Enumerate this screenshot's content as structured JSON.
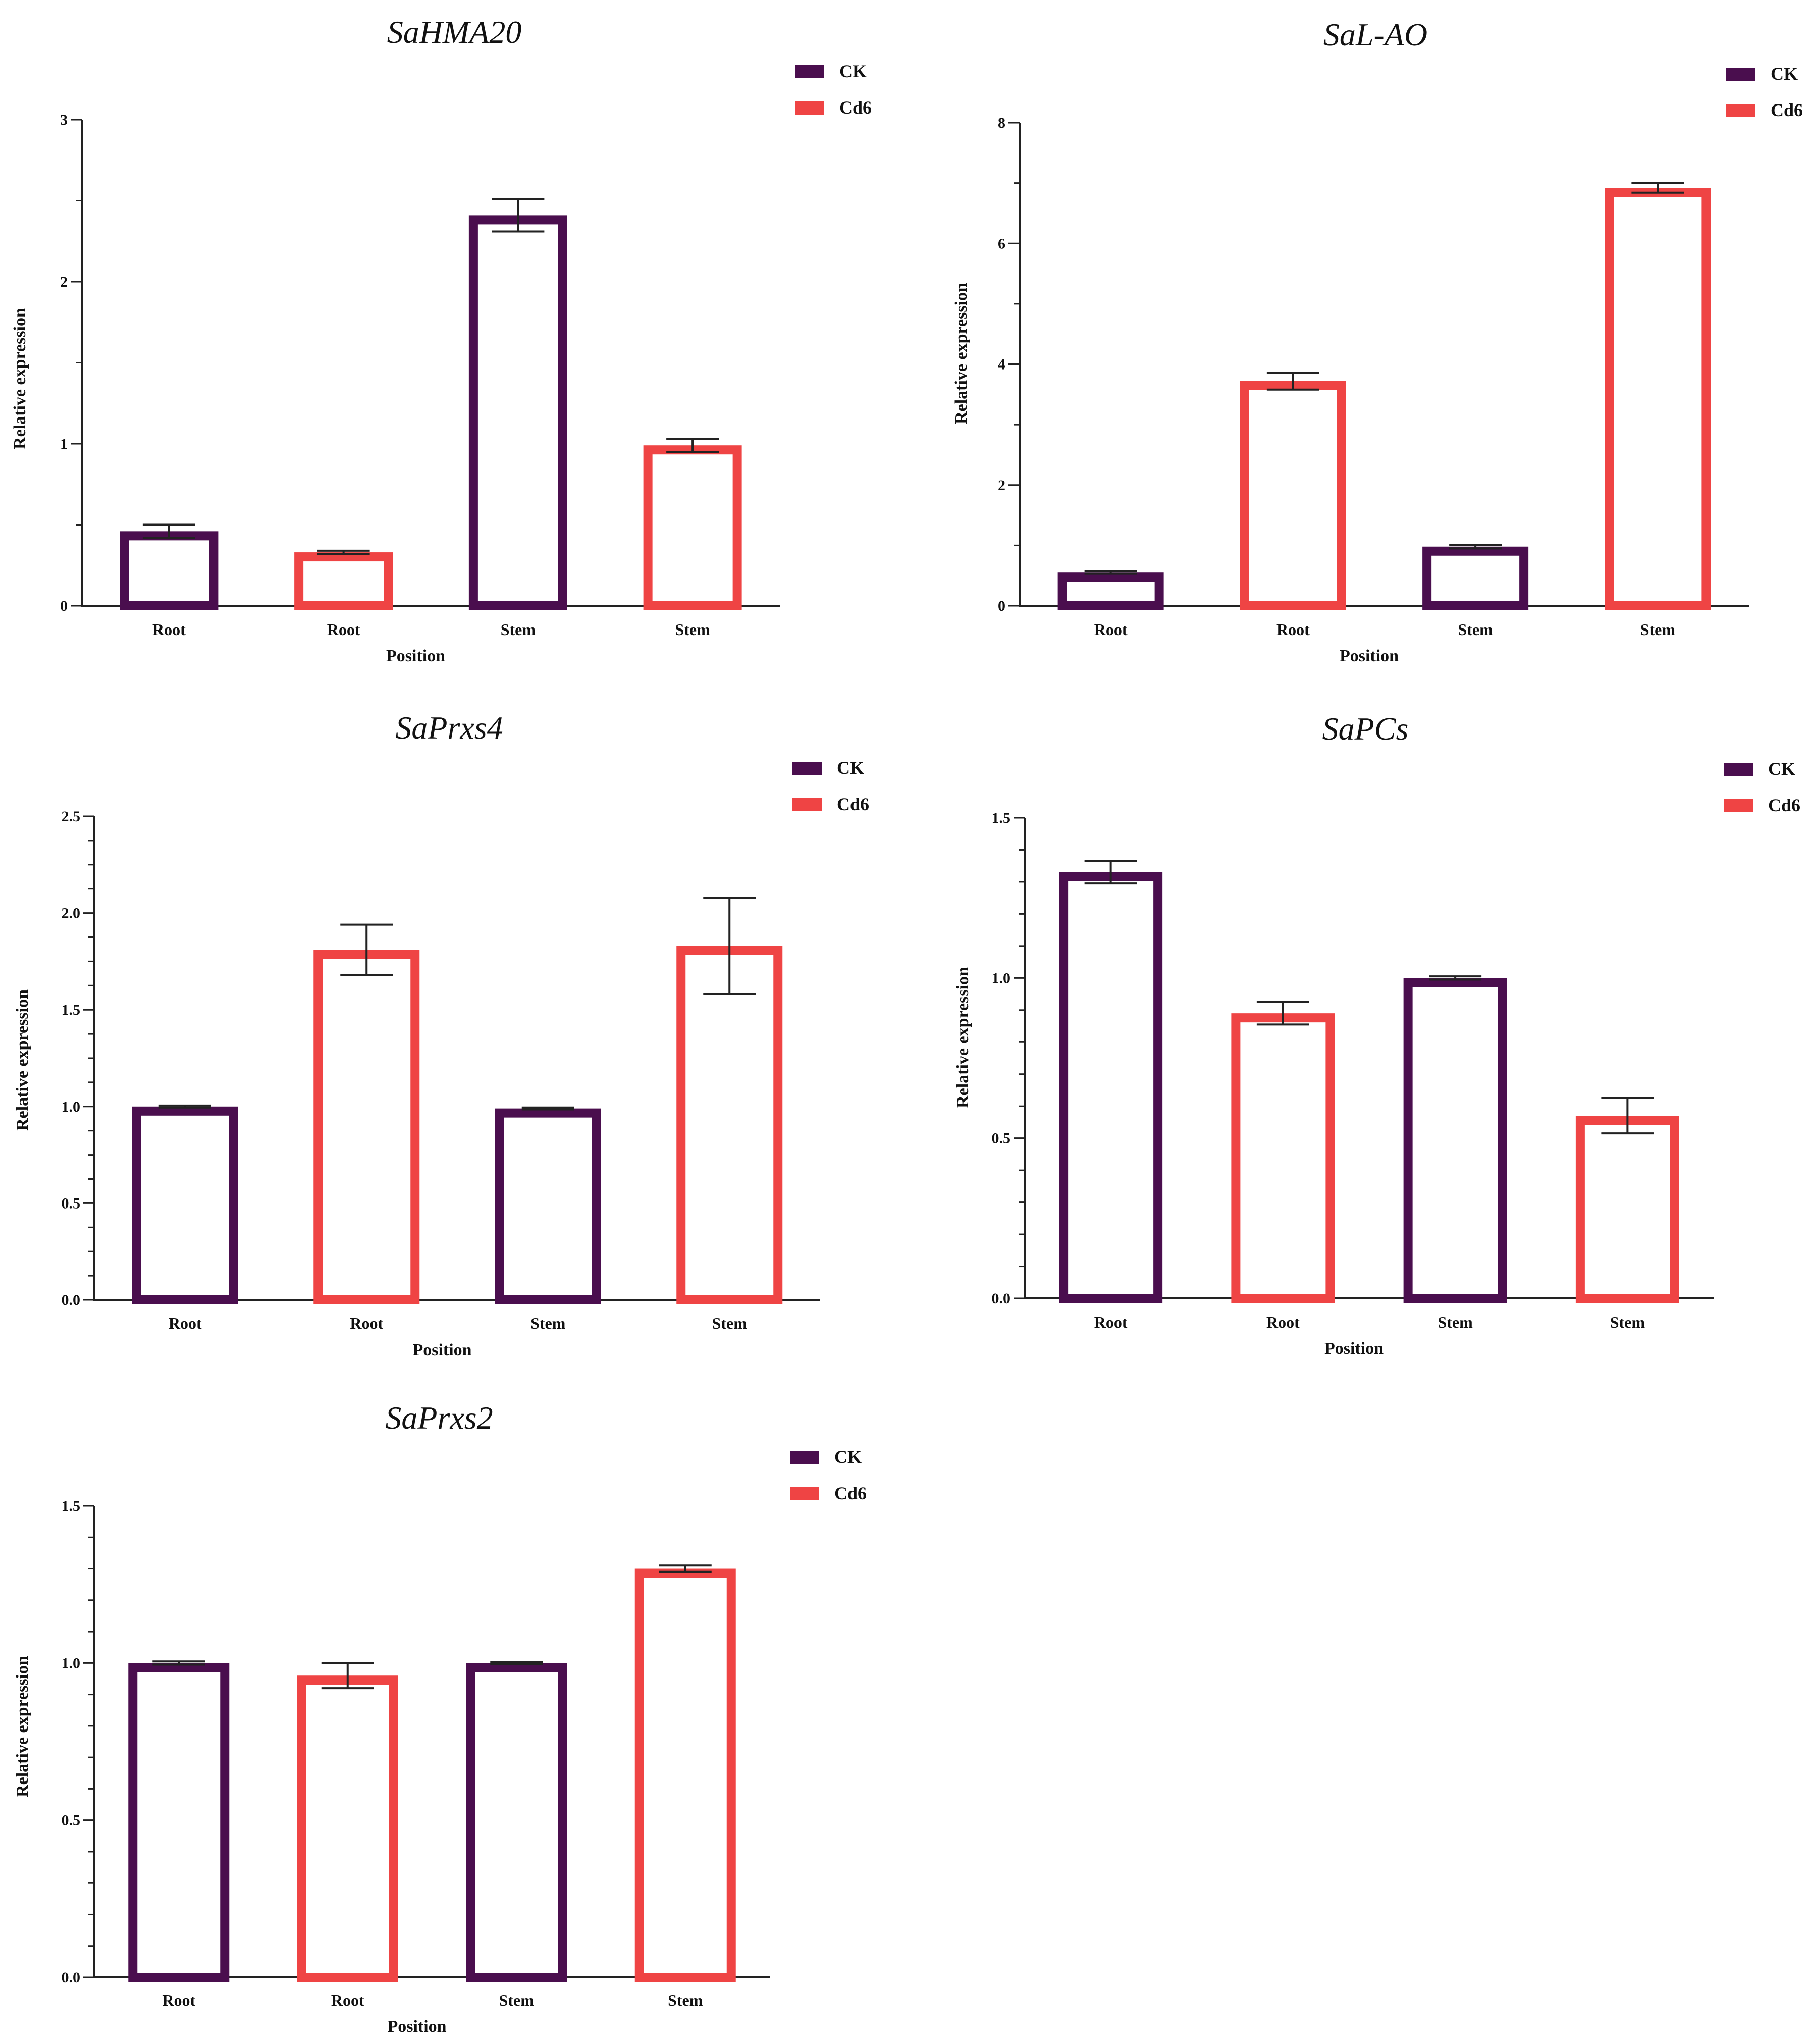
{
  "colors": {
    "CK": "#4a0e4e",
    "Cd6": "#ef4444",
    "axis": "#222222"
  },
  "chart_data": [
    {
      "type": "bar",
      "title": "SaHMA20",
      "xlabel": "Position",
      "ylabel": "Relative expression",
      "ylim": [
        0,
        3
      ],
      "yticks": [
        0,
        1,
        2,
        3
      ],
      "ytick_labels": [
        "0",
        "1",
        "2",
        "3"
      ],
      "minor_per_major": 2,
      "categories": [
        "Root",
        "Root",
        "Stem",
        "Stem"
      ],
      "groups": [
        "CK",
        "Cd6",
        "CK",
        "Cd6"
      ],
      "values": [
        0.46,
        0.33,
        2.41,
        0.99
      ],
      "errors": [
        0.04,
        0.01,
        0.1,
        0.04
      ],
      "legend": [
        "CK",
        "Cd6"
      ],
      "legend_position": "top-right"
    },
    {
      "type": "bar",
      "title": "SaL-AO",
      "xlabel": "Position",
      "ylabel": "Relative expression",
      "ylim": [
        0,
        8
      ],
      "yticks": [
        0,
        2,
        4,
        6,
        8
      ],
      "ytick_labels": [
        "0",
        "2",
        "4",
        "6",
        "8"
      ],
      "minor_per_major": 2,
      "categories": [
        "Root",
        "Root",
        "Stem",
        "Stem"
      ],
      "groups": [
        "CK",
        "Cd6",
        "CK",
        "Cd6"
      ],
      "values": [
        0.55,
        3.72,
        0.98,
        6.92
      ],
      "errors": [
        0.02,
        0.14,
        0.03,
        0.08
      ],
      "legend": [
        "CK",
        "Cd6"
      ],
      "legend_position": "top-right"
    },
    {
      "type": "bar",
      "title": "SaPrxs4",
      "xlabel": "Position",
      "ylabel": "Relative expression",
      "ylim": [
        0,
        2.5
      ],
      "yticks": [
        0,
        0.5,
        1,
        1.5,
        2,
        2.5
      ],
      "ytick_labels": [
        "0.0",
        "0.5",
        "1.0",
        "1.5",
        "2.0",
        "2.5"
      ],
      "minor_per_major": 4,
      "categories": [
        "Root",
        "Root",
        "Stem",
        "Stem"
      ],
      "groups": [
        "CK",
        "Cd6",
        "CK",
        "Cd6"
      ],
      "values": [
        1.0,
        1.81,
        0.99,
        1.83
      ],
      "errors": [
        0.005,
        0.13,
        0.005,
        0.25
      ],
      "legend": [
        "CK",
        "Cd6"
      ],
      "legend_position": "top-right"
    },
    {
      "type": "bar",
      "title": "SaPCs",
      "xlabel": "Position",
      "ylabel": "Relative expression",
      "ylim": [
        0,
        1.5
      ],
      "yticks": [
        0,
        0.5,
        1,
        1.5
      ],
      "ytick_labels": [
        "0.0",
        "0.5",
        "1.0",
        "1.5"
      ],
      "minor_per_major": 5,
      "categories": [
        "Root",
        "Root",
        "Stem",
        "Stem"
      ],
      "groups": [
        "CK",
        "Cd6",
        "CK",
        "Cd6"
      ],
      "values": [
        1.33,
        0.89,
        1.0,
        0.57
      ],
      "errors": [
        0.035,
        0.035,
        0.005,
        0.055
      ],
      "legend": [
        "CK",
        "Cd6"
      ],
      "legend_position": "top-right"
    },
    {
      "type": "bar",
      "title": "SaPrxs2",
      "xlabel": "Position",
      "ylabel": "Relative expression",
      "ylim": [
        0,
        1.5
      ],
      "yticks": [
        0,
        0.5,
        1,
        1.5
      ],
      "ytick_labels": [
        "0.0",
        "0.5",
        "1.0",
        "1.5"
      ],
      "minor_per_major": 5,
      "categories": [
        "Root",
        "Root",
        "Stem",
        "Stem"
      ],
      "groups": [
        "CK",
        "Cd6",
        "CK",
        "Cd6"
      ],
      "values": [
        1.0,
        0.96,
        1.0,
        1.3
      ],
      "errors": [
        0.005,
        0.04,
        0.003,
        0.01
      ],
      "legend": [
        "CK",
        "Cd6"
      ],
      "legend_position": "top-right"
    }
  ]
}
